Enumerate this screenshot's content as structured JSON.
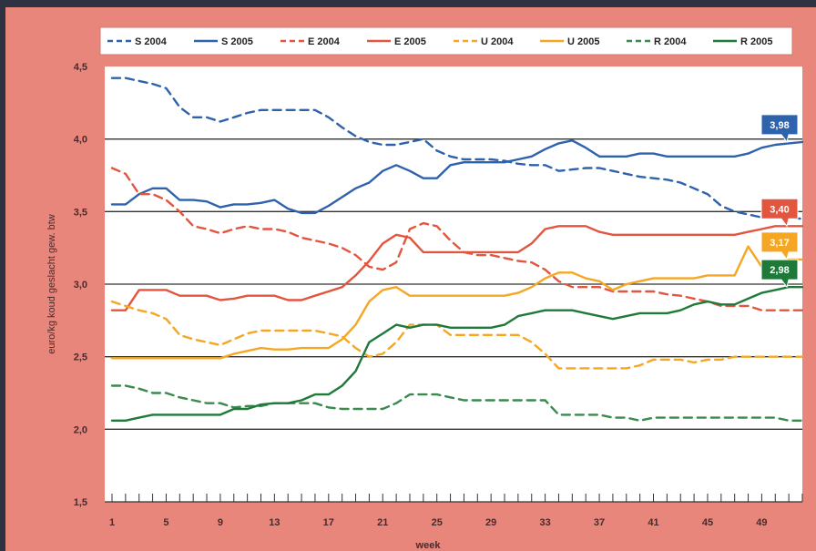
{
  "chart_data": {
    "type": "line",
    "title": "",
    "xlabel": "week",
    "ylabel": "euro/kg koud geslacht gew. btw",
    "ylim": [
      1.5,
      4.5
    ],
    "xlim": [
      1,
      52
    ],
    "yticks": [
      1.5,
      2.0,
      2.5,
      3.0,
      3.5,
      4.0,
      4.5
    ],
    "ytick_labels": [
      "1,5",
      "2,0",
      "2,5",
      "3,0",
      "3,5",
      "4,0",
      "4,5"
    ],
    "xticks": [
      1,
      5,
      9,
      13,
      17,
      21,
      25,
      29,
      33,
      37,
      41,
      45,
      49
    ],
    "xtick_labels": [
      "1",
      "5",
      "9",
      "13",
      "17",
      "21",
      "25",
      "29",
      "33",
      "37",
      "41",
      "45",
      "49"
    ],
    "grid": "horizontal major lines at 2,0 / 2,5 / 3,0 / 3,5 / 4,0",
    "legend_position": "top",
    "series": [
      {
        "name": "S 2004",
        "color": "#2f62ad",
        "dash": true,
        "x": [
          1,
          2,
          3,
          4,
          5,
          6,
          7,
          8,
          9,
          10,
          11,
          12,
          13,
          14,
          15,
          16,
          17,
          18,
          19,
          20,
          21,
          22,
          23,
          24,
          25,
          26,
          27,
          28,
          29,
          30,
          31,
          32,
          33,
          34,
          35,
          36,
          37,
          38,
          39,
          40,
          41,
          42,
          43,
          44,
          45,
          46,
          47,
          48,
          49,
          50,
          51,
          52
        ],
        "y": [
          4.42,
          4.42,
          4.4,
          4.38,
          4.35,
          4.22,
          4.15,
          4.15,
          4.12,
          4.15,
          4.18,
          4.2,
          4.2,
          4.2,
          4.2,
          4.2,
          4.15,
          4.08,
          4.02,
          3.98,
          3.96,
          3.96,
          3.98,
          4.0,
          3.92,
          3.88,
          3.86,
          3.86,
          3.86,
          3.85,
          3.83,
          3.82,
          3.82,
          3.78,
          3.79,
          3.8,
          3.8,
          3.78,
          3.76,
          3.74,
          3.73,
          3.72,
          3.7,
          3.66,
          3.62,
          3.54,
          3.5,
          3.48,
          3.46,
          3.46,
          3.46,
          3.45
        ]
      },
      {
        "name": "S 2005",
        "color": "#2f62ad",
        "dash": false,
        "x": [
          1,
          2,
          3,
          4,
          5,
          6,
          7,
          8,
          9,
          10,
          11,
          12,
          13,
          14,
          15,
          16,
          17,
          18,
          19,
          20,
          21,
          22,
          23,
          24,
          25,
          26,
          27,
          28,
          29,
          30,
          31,
          32,
          33,
          34,
          35,
          36,
          37,
          38,
          39,
          40,
          41,
          42,
          43,
          44,
          45,
          46,
          47,
          48,
          49,
          50,
          51,
          52
        ],
        "y": [
          3.55,
          3.55,
          3.62,
          3.66,
          3.66,
          3.58,
          3.58,
          3.57,
          3.53,
          3.55,
          3.55,
          3.56,
          3.58,
          3.52,
          3.49,
          3.49,
          3.54,
          3.6,
          3.66,
          3.7,
          3.78,
          3.82,
          3.78,
          3.73,
          3.73,
          3.82,
          3.84,
          3.84,
          3.84,
          3.84,
          3.86,
          3.88,
          3.93,
          3.97,
          3.99,
          3.94,
          3.88,
          3.88,
          3.88,
          3.9,
          3.9,
          3.88,
          3.88,
          3.88,
          3.88,
          3.88,
          3.88,
          3.9,
          3.94,
          3.96,
          3.97,
          3.98
        ]
      },
      {
        "name": "E 2004",
        "color": "#e2553f",
        "dash": true,
        "x": [
          1,
          2,
          3,
          4,
          5,
          6,
          7,
          8,
          9,
          10,
          11,
          12,
          13,
          14,
          15,
          16,
          17,
          18,
          19,
          20,
          21,
          22,
          23,
          24,
          25,
          26,
          27,
          28,
          29,
          30,
          31,
          32,
          33,
          34,
          35,
          36,
          37,
          38,
          39,
          40,
          41,
          42,
          43,
          44,
          45,
          46,
          47,
          48,
          49,
          50,
          51,
          52
        ],
        "y": [
          3.8,
          3.76,
          3.62,
          3.62,
          3.58,
          3.5,
          3.4,
          3.38,
          3.35,
          3.38,
          3.4,
          3.38,
          3.38,
          3.36,
          3.32,
          3.3,
          3.28,
          3.25,
          3.2,
          3.12,
          3.1,
          3.15,
          3.38,
          3.42,
          3.4,
          3.3,
          3.22,
          3.2,
          3.2,
          3.18,
          3.16,
          3.15,
          3.1,
          3.02,
          2.98,
          2.98,
          2.98,
          2.95,
          2.95,
          2.95,
          2.95,
          2.93,
          2.92,
          2.9,
          2.88,
          2.85,
          2.85,
          2.85,
          2.82,
          2.82,
          2.82,
          2.82
        ]
      },
      {
        "name": "E 2005",
        "color": "#e2553f",
        "dash": false,
        "x": [
          1,
          2,
          3,
          4,
          5,
          6,
          7,
          8,
          9,
          10,
          11,
          12,
          13,
          14,
          15,
          16,
          17,
          18,
          19,
          20,
          21,
          22,
          23,
          24,
          25,
          26,
          27,
          28,
          29,
          30,
          31,
          32,
          33,
          34,
          35,
          36,
          37,
          38,
          39,
          40,
          41,
          42,
          43,
          44,
          45,
          46,
          47,
          48,
          49,
          50,
          51,
          52
        ],
        "y": [
          2.82,
          2.82,
          2.96,
          2.96,
          2.96,
          2.92,
          2.92,
          2.92,
          2.89,
          2.9,
          2.92,
          2.92,
          2.92,
          2.89,
          2.89,
          2.92,
          2.95,
          2.98,
          3.06,
          3.16,
          3.28,
          3.34,
          3.32,
          3.22,
          3.22,
          3.22,
          3.22,
          3.22,
          3.22,
          3.22,
          3.22,
          3.28,
          3.38,
          3.4,
          3.4,
          3.4,
          3.36,
          3.34,
          3.34,
          3.34,
          3.34,
          3.34,
          3.34,
          3.34,
          3.34,
          3.34,
          3.34,
          3.36,
          3.38,
          3.4,
          3.4,
          3.4
        ]
      },
      {
        "name": "U 2004",
        "color": "#f5a623",
        "dash": true,
        "x": [
          1,
          2,
          3,
          4,
          5,
          6,
          7,
          8,
          9,
          10,
          11,
          12,
          13,
          14,
          15,
          16,
          17,
          18,
          19,
          20,
          21,
          22,
          23,
          24,
          25,
          26,
          27,
          28,
          29,
          30,
          31,
          32,
          33,
          34,
          35,
          36,
          37,
          38,
          39,
          40,
          41,
          42,
          43,
          44,
          45,
          46,
          47,
          48,
          49,
          50,
          51,
          52
        ],
        "y": [
          2.88,
          2.85,
          2.82,
          2.8,
          2.76,
          2.65,
          2.62,
          2.6,
          2.58,
          2.62,
          2.66,
          2.68,
          2.68,
          2.68,
          2.68,
          2.68,
          2.66,
          2.64,
          2.56,
          2.5,
          2.52,
          2.6,
          2.72,
          2.72,
          2.72,
          2.65,
          2.65,
          2.65,
          2.65,
          2.65,
          2.65,
          2.6,
          2.52,
          2.42,
          2.42,
          2.42,
          2.42,
          2.42,
          2.42,
          2.44,
          2.48,
          2.48,
          2.48,
          2.46,
          2.48,
          2.48,
          2.5,
          2.5,
          2.5,
          2.5,
          2.5,
          2.5
        ]
      },
      {
        "name": "U 2005",
        "color": "#f5a623",
        "dash": false,
        "x": [
          1,
          2,
          3,
          4,
          5,
          6,
          7,
          8,
          9,
          10,
          11,
          12,
          13,
          14,
          15,
          16,
          17,
          18,
          19,
          20,
          21,
          22,
          23,
          24,
          25,
          26,
          27,
          28,
          29,
          30,
          31,
          32,
          33,
          34,
          35,
          36,
          37,
          38,
          39,
          40,
          41,
          42,
          43,
          44,
          45,
          46,
          47,
          48,
          49,
          50,
          51,
          52
        ],
        "y": [
          2.49,
          2.49,
          2.49,
          2.49,
          2.49,
          2.49,
          2.49,
          2.49,
          2.49,
          2.52,
          2.54,
          2.56,
          2.55,
          2.55,
          2.56,
          2.56,
          2.56,
          2.62,
          2.72,
          2.88,
          2.96,
          2.98,
          2.92,
          2.92,
          2.92,
          2.92,
          2.92,
          2.92,
          2.92,
          2.92,
          2.94,
          2.98,
          3.04,
          3.08,
          3.08,
          3.04,
          3.02,
          2.96,
          3.0,
          3.02,
          3.04,
          3.04,
          3.04,
          3.04,
          3.06,
          3.06,
          3.06,
          3.26,
          3.12,
          3.15,
          3.17,
          3.17
        ]
      },
      {
        "name": "R 2004",
        "color": "#3a8a4f",
        "dash": true,
        "x": [
          1,
          2,
          3,
          4,
          5,
          6,
          7,
          8,
          9,
          10,
          11,
          12,
          13,
          14,
          15,
          16,
          17,
          18,
          19,
          20,
          21,
          22,
          23,
          24,
          25,
          26,
          27,
          28,
          29,
          30,
          31,
          32,
          33,
          34,
          35,
          36,
          37,
          38,
          39,
          40,
          41,
          42,
          43,
          44,
          45,
          46,
          47,
          48,
          49,
          50,
          51,
          52
        ],
        "y": [
          2.3,
          2.3,
          2.28,
          2.25,
          2.25,
          2.22,
          2.2,
          2.18,
          2.18,
          2.15,
          2.16,
          2.16,
          2.18,
          2.18,
          2.18,
          2.18,
          2.15,
          2.14,
          2.14,
          2.14,
          2.14,
          2.18,
          2.24,
          2.24,
          2.24,
          2.22,
          2.2,
          2.2,
          2.2,
          2.2,
          2.2,
          2.2,
          2.2,
          2.1,
          2.1,
          2.1,
          2.1,
          2.08,
          2.08,
          2.06,
          2.08,
          2.08,
          2.08,
          2.08,
          2.08,
          2.08,
          2.08,
          2.08,
          2.08,
          2.08,
          2.06,
          2.06
        ]
      },
      {
        "name": "R 2005",
        "color": "#1f7a3a",
        "dash": false,
        "x": [
          1,
          2,
          3,
          4,
          5,
          6,
          7,
          8,
          9,
          10,
          11,
          12,
          13,
          14,
          15,
          16,
          17,
          18,
          19,
          20,
          21,
          22,
          23,
          24,
          25,
          26,
          27,
          28,
          29,
          30,
          31,
          32,
          33,
          34,
          35,
          36,
          37,
          38,
          39,
          40,
          41,
          42,
          43,
          44,
          45,
          46,
          47,
          48,
          49,
          50,
          51,
          52
        ],
        "y": [
          2.06,
          2.06,
          2.08,
          2.1,
          2.1,
          2.1,
          2.1,
          2.1,
          2.1,
          2.14,
          2.14,
          2.17,
          2.18,
          2.18,
          2.2,
          2.24,
          2.24,
          2.3,
          2.4,
          2.6,
          2.66,
          2.72,
          2.7,
          2.72,
          2.72,
          2.7,
          2.7,
          2.7,
          2.7,
          2.72,
          2.78,
          2.8,
          2.82,
          2.82,
          2.82,
          2.8,
          2.78,
          2.76,
          2.78,
          2.8,
          2.8,
          2.8,
          2.82,
          2.86,
          2.88,
          2.86,
          2.86,
          2.9,
          2.94,
          2.96,
          2.98,
          2.98
        ]
      }
    ],
    "end_labels": [
      {
        "text": "3,98",
        "series": "S 2005",
        "color": "#2f62ad"
      },
      {
        "text": "3,40",
        "series": "E 2005",
        "color": "#e2553f"
      },
      {
        "text": "3,17",
        "series": "U 2005",
        "color": "#f5a623"
      },
      {
        "text": "2,98",
        "series": "R 2005",
        "color": "#1f7a3a"
      }
    ]
  },
  "colors": {
    "frame": "#e8867c",
    "page_background": "#2d3340",
    "plot_background": "#ffffff",
    "grid": "#333333"
  }
}
